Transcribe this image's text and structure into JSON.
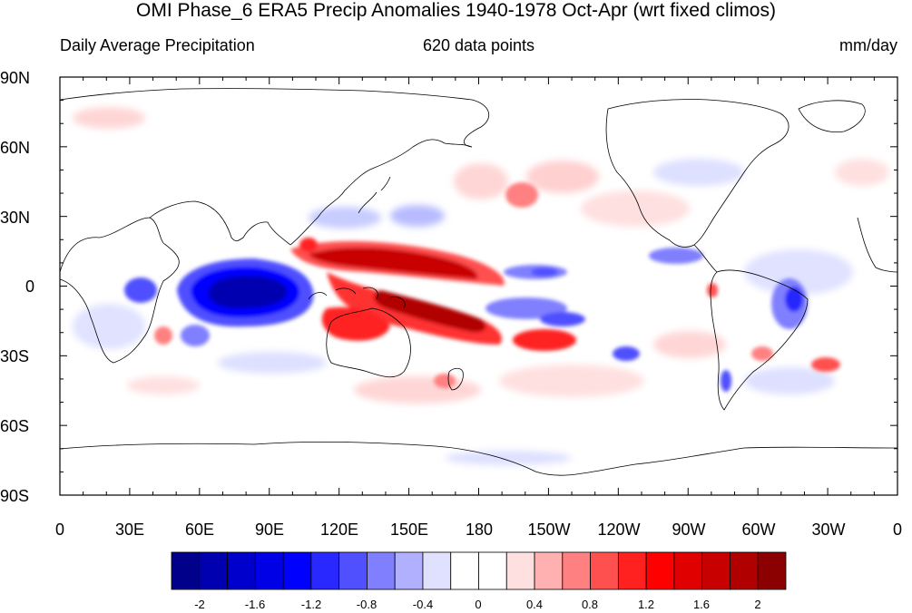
{
  "title": "OMI Phase_6 ERA5 Precip Anomalies 1940-1978 Oct-Apr (wrt fixed climos)",
  "subtitle_left": "Daily Average Precipitation",
  "subtitle_center": "620 data points",
  "subtitle_right": "mm/day",
  "axes": {
    "lat_labels": [
      "90N",
      "60N",
      "30N",
      "0",
      "30S",
      "60S",
      "90S"
    ],
    "lon_labels": [
      "0",
      "30E",
      "60E",
      "90E",
      "120E",
      "150E",
      "180",
      "150W",
      "120W",
      "90W",
      "60W",
      "30W",
      "0"
    ]
  },
  "colorbar": {
    "colors": [
      "#00008b",
      "#0000b0",
      "#0000cc",
      "#0000e6",
      "#0000ff",
      "#2828ff",
      "#5050ff",
      "#8080ff",
      "#b0b0ff",
      "#e0e0ff",
      "#ffffff",
      "#ffffff",
      "#ffe0e0",
      "#ffb0b0",
      "#ff8080",
      "#ff5050",
      "#ff2020",
      "#ff0000",
      "#e00000",
      "#c80000",
      "#b00000",
      "#8b0000"
    ],
    "tick_labels": [
      "-2",
      "-1.6",
      "-1.2",
      "-0.8",
      "-0.4",
      "0",
      "0.4",
      "0.8",
      "1.2",
      "1.6",
      "2"
    ]
  },
  "colors": {
    "negative_strong": "#0000cc",
    "negative_weak": "#d8dcff",
    "positive_weak": "#ffd6d6",
    "positive_strong": "#b00000",
    "coastline": "#000000"
  }
}
